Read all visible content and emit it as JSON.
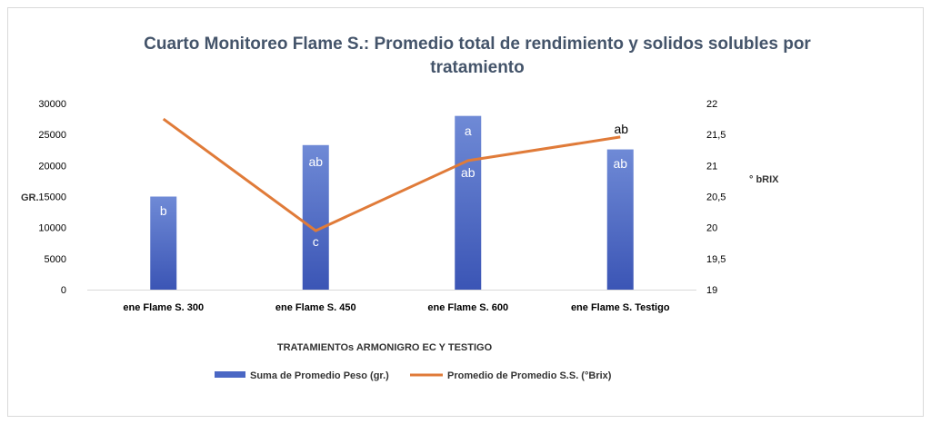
{
  "chart_data": {
    "type": "bar",
    "title_line1": "Cuarto Monitoreo Flame S.: Promedio total de rendimiento y solidos solubles por",
    "title_line2": "tratamiento",
    "xlabel": "TRATAMIENTOs ARMONIGRO EC Y TESTIGO",
    "ylabel_left": "GR.",
    "ylabel_right": "° bRIX",
    "categories": [
      "ene Flame S. 300",
      "ene Flame S. 450",
      "ene Flame S. 600",
      "ene Flame S. Testigo"
    ],
    "ylim_left": [
      0,
      30000
    ],
    "ylim_right": [
      19,
      22
    ],
    "left_ticks": [
      "0",
      "5000",
      "10000",
      "15000",
      "20000",
      "25000",
      "30000"
    ],
    "right_ticks": [
      "19",
      "19,5",
      "20",
      "20,5",
      "21",
      "21,5",
      "22"
    ],
    "grid": false,
    "legend_position": "bottom",
    "series": [
      {
        "name": "Suma de Promedio Peso (gr.)",
        "type": "bar",
        "axis": "left",
        "color": "#4a67c4",
        "values": [
          15000,
          23300,
          28000,
          22600
        ],
        "labels": [
          "b",
          "ab",
          "a",
          "ab"
        ]
      },
      {
        "name": "Promedio de Promedio S.S. (°Brix)",
        "type": "line",
        "axis": "right",
        "color": "#e07b39",
        "values": [
          21.75,
          19.95,
          21.08,
          21.46
        ],
        "labels": [
          "",
          "c",
          "ab",
          "ab"
        ]
      }
    ]
  }
}
